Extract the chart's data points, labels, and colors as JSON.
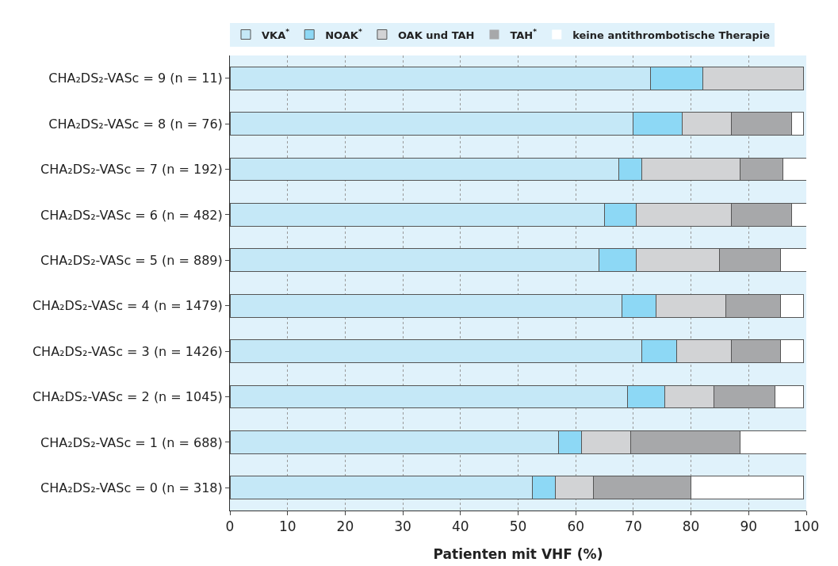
{
  "chart_data": {
    "type": "bar",
    "orientation": "horizontal",
    "stacked": true,
    "categories": [
      "CHA₂DS₂-VASc = 9 (n = 11)",
      "CHA₂DS₂-VASc = 8 (n = 76)",
      "CHA₂DS₂-VASc = 7 (n = 192)",
      "CHA₂DS₂-VASc = 6 (n = 482)",
      "CHA₂DS₂-VASc = 5 (n = 889)",
      "CHA₂DS₂-VASc = 4 (n = 1479)",
      "CHA₂DS₂-VASc = 3 (n = 1426)",
      "CHA₂DS₂-VASc = 2 (n = 1045)",
      "CHA₂DS₂-VASc = 1 (n = 688)",
      "CHA₂DS₂-VASc = 0 (n = 318)"
    ],
    "series": [
      {
        "name": "VKA$^{*}$",
        "color": "#c5e8f7",
        "values": [
          73,
          70,
          67.5,
          65,
          64,
          68,
          71.5,
          69,
          57,
          52.5
        ]
      },
      {
        "name": "NOAK$^{*}$",
        "color": "#8dd8f5",
        "values": [
          9,
          8.5,
          4,
          5.5,
          6.5,
          6,
          6,
          6.5,
          4,
          4
        ]
      },
      {
        "name": "OAK und TAH",
        "color": "#d2d3d5",
        "values": [
          17.5,
          8.5,
          17,
          16.5,
          14.5,
          12,
          9.5,
          8.5,
          8.5,
          6.5
        ]
      },
      {
        "name": "TAH$^{*}$",
        "color": "#a7a8aa",
        "values": [
          0,
          10.5,
          7.5,
          10.5,
          10.5,
          9.5,
          8.5,
          10.5,
          19,
          17
        ]
      },
      {
        "name": "keine antithrombotische Therapie",
        "color": "#ffffff",
        "values": [
          0,
          2,
          4,
          2.5,
          4.5,
          4,
          4,
          5,
          11.5,
          19.5
        ]
      }
    ],
    "xlabel": "Patienten mit VHF (%)",
    "xlim": [
      0,
      100
    ],
    "xticks": [
      0,
      10,
      20,
      30,
      40,
      50,
      60,
      70,
      80,
      90,
      100
    ],
    "grid": "x",
    "legend": "top"
  }
}
